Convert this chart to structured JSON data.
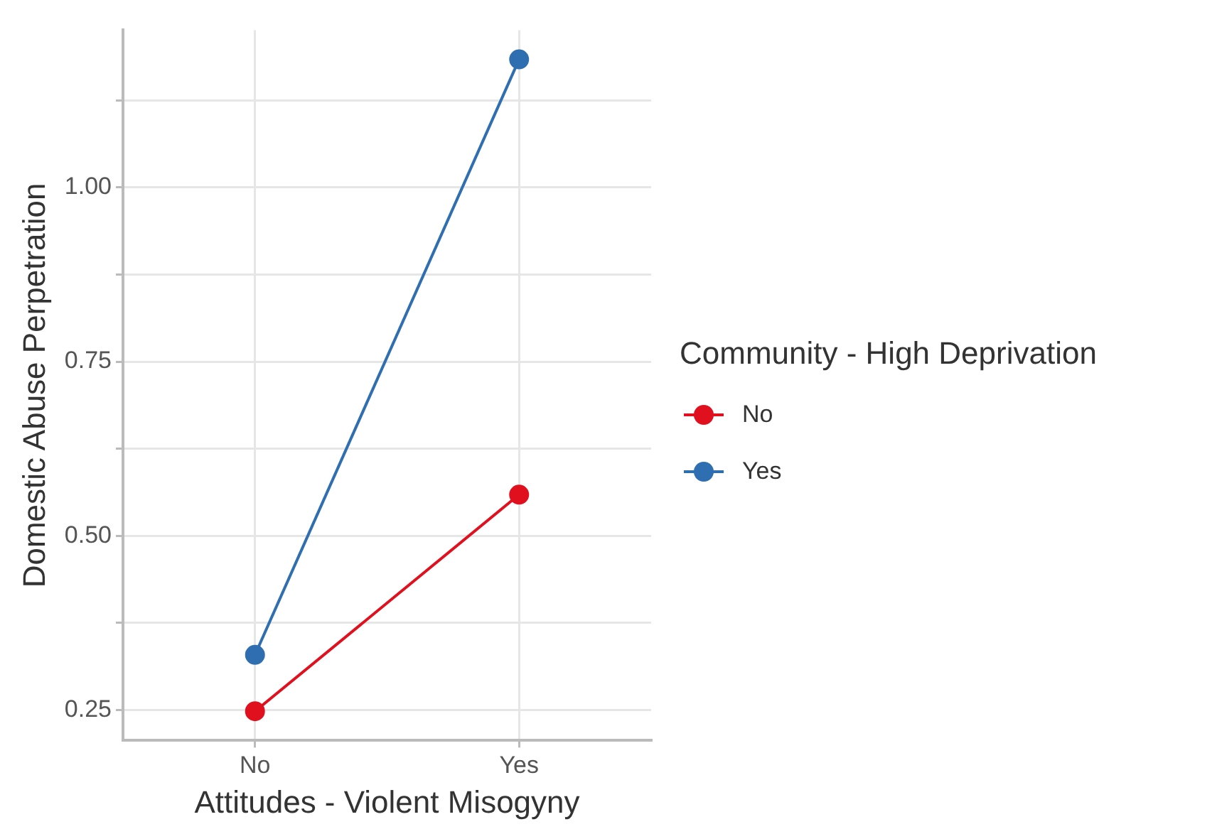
{
  "chart_data": {
    "type": "line",
    "xlabel": "Attitudes - Violent Misogyny",
    "ylabel": "Domestic Abuse Perpetration",
    "legend_title": "Community - High Deprivation",
    "categories": [
      "No",
      "Yes"
    ],
    "series": [
      {
        "name": "No",
        "color": "#e0101e",
        "values": [
          0.248,
          0.559
        ]
      },
      {
        "name": "Yes",
        "color": "#2f6eb0",
        "values": [
          0.329,
          1.184
        ]
      }
    ],
    "ylim": [
      0.206,
      1.226
    ],
    "yticks": [
      {
        "value": 0.25,
        "label": "0.25"
      },
      {
        "value": 0.375,
        "label": null
      },
      {
        "value": 0.5,
        "label": "0.50"
      },
      {
        "value": 0.625,
        "label": null
      },
      {
        "value": 0.75,
        "label": "0.75"
      },
      {
        "value": 0.875,
        "label": null
      },
      {
        "value": 1.0,
        "label": "1.00"
      },
      {
        "value": 1.125,
        "label": null
      }
    ],
    "grid": true,
    "legend": "right",
    "marker": "circle",
    "line_style": "solid"
  }
}
